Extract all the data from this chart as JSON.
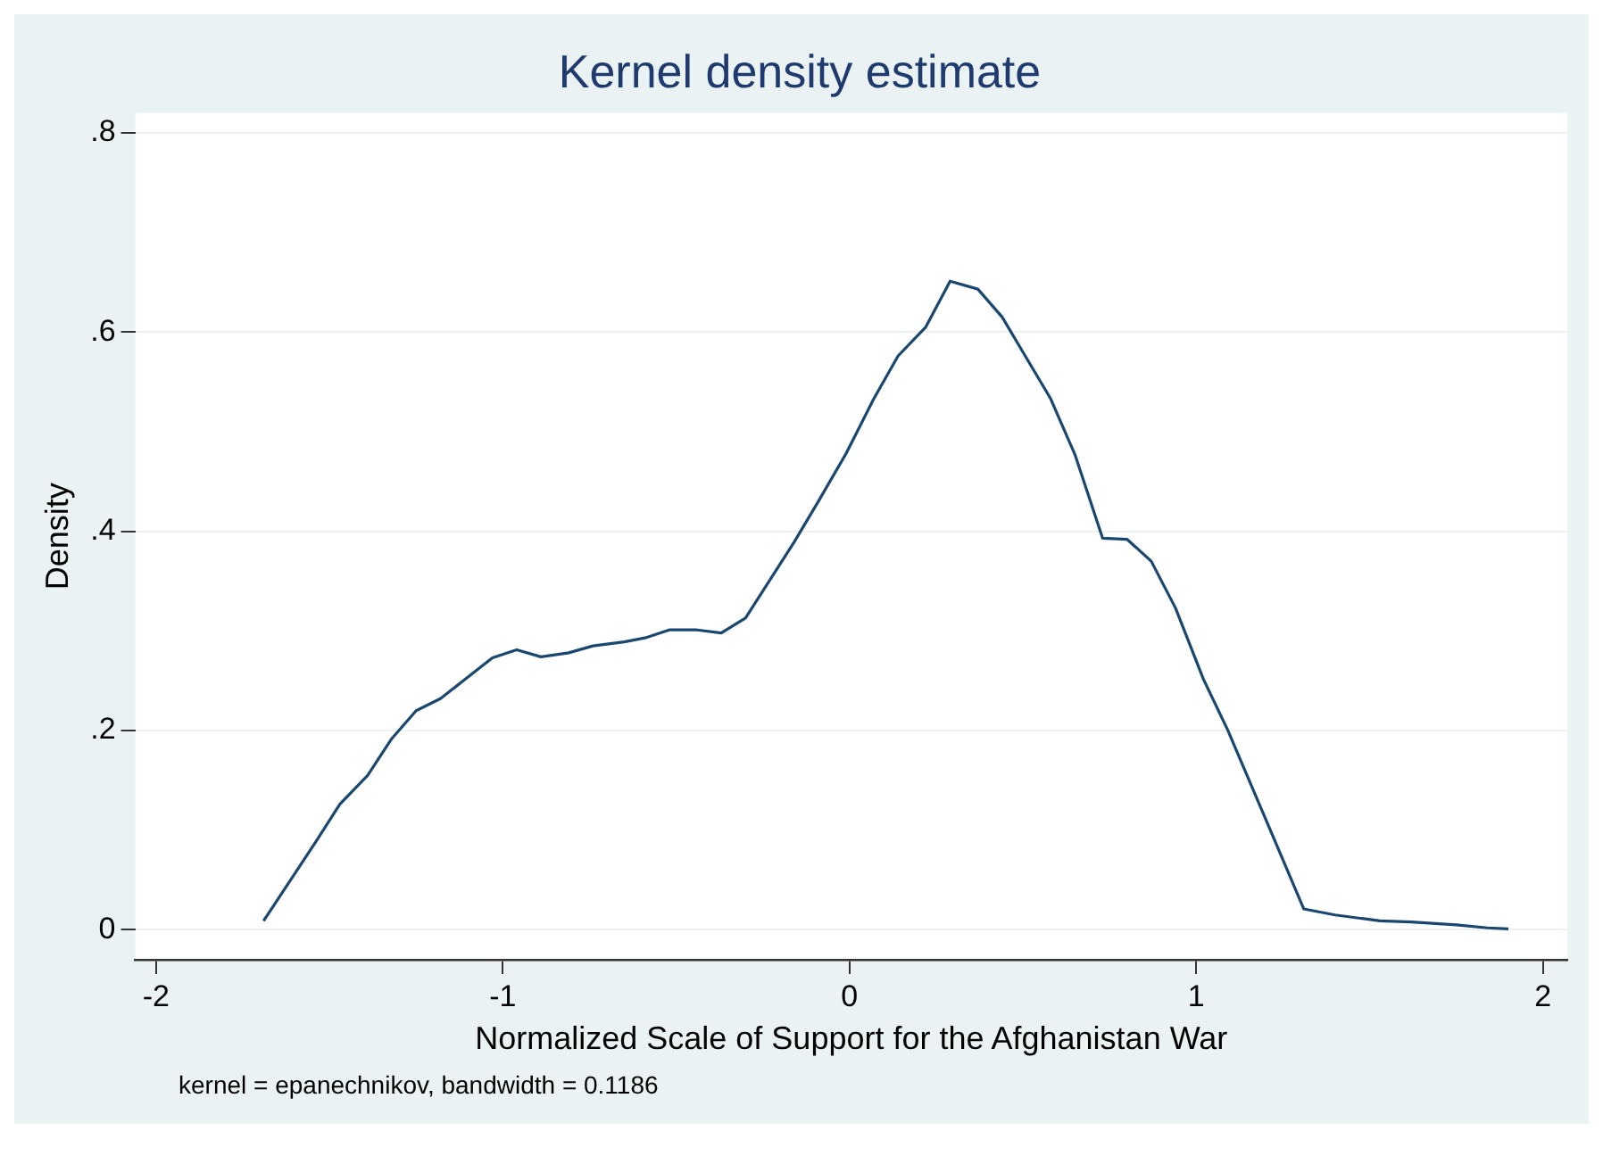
{
  "chart_data": {
    "type": "line",
    "title": "Kernel density estimate",
    "xlabel": "Normalized Scale of Support for the Afghanistan War",
    "ylabel": "Density",
    "annotations": [
      "kernel = epanechnikov, bandwidth = 0.1186"
    ],
    "series": [
      {
        "color": "#1a476f",
        "x": [
          -1.69,
          -1.54,
          -1.47,
          -1.39,
          -1.32,
          -1.25,
          -1.18,
          -1.03,
          -0.96,
          -0.89,
          -0.81,
          -0.74,
          -0.65,
          -0.59,
          -0.52,
          -0.44,
          -0.37,
          -0.3,
          -0.16,
          -0.09,
          -0.01,
          0.07,
          0.14,
          0.22,
          0.29,
          0.37,
          0.44,
          0.51,
          0.58,
          0.65,
          0.73,
          0.8,
          0.87,
          0.94,
          1.02,
          1.09,
          1.21,
          1.31,
          1.4,
          1.53,
          1.62,
          1.75,
          1.84,
          1.9
        ],
        "values": [
          0.009,
          0.088,
          0.126,
          0.155,
          0.192,
          0.22,
          0.232,
          0.273,
          0.281,
          0.274,
          0.278,
          0.285,
          0.289,
          0.293,
          0.301,
          0.301,
          0.298,
          0.313,
          0.389,
          0.43,
          0.478,
          0.533,
          0.576,
          0.605,
          0.651,
          0.643,
          0.615,
          0.574,
          0.533,
          0.477,
          0.393,
          0.392,
          0.37,
          0.323,
          0.252,
          0.201,
          0.103,
          0.021,
          0.015,
          0.009,
          0.008,
          0.005,
          0.002,
          0.001
        ]
      }
    ],
    "xlim": [
      -2.06,
      2.07
    ],
    "xticks": [
      -2,
      -1,
      0,
      1,
      2
    ],
    "ylim": [
      -0.03,
      0.82
    ],
    "yticks": [
      0,
      {
        "value": 0.2,
        "label": ".2"
      },
      {
        "value": 0.4,
        "label": ".4"
      },
      {
        "value": 0.6,
        "label": ".6"
      },
      {
        "value": 0.8,
        "label": ".8"
      }
    ],
    "grid": "y",
    "legend": false,
    "marker": "none",
    "line_style": "solid"
  }
}
